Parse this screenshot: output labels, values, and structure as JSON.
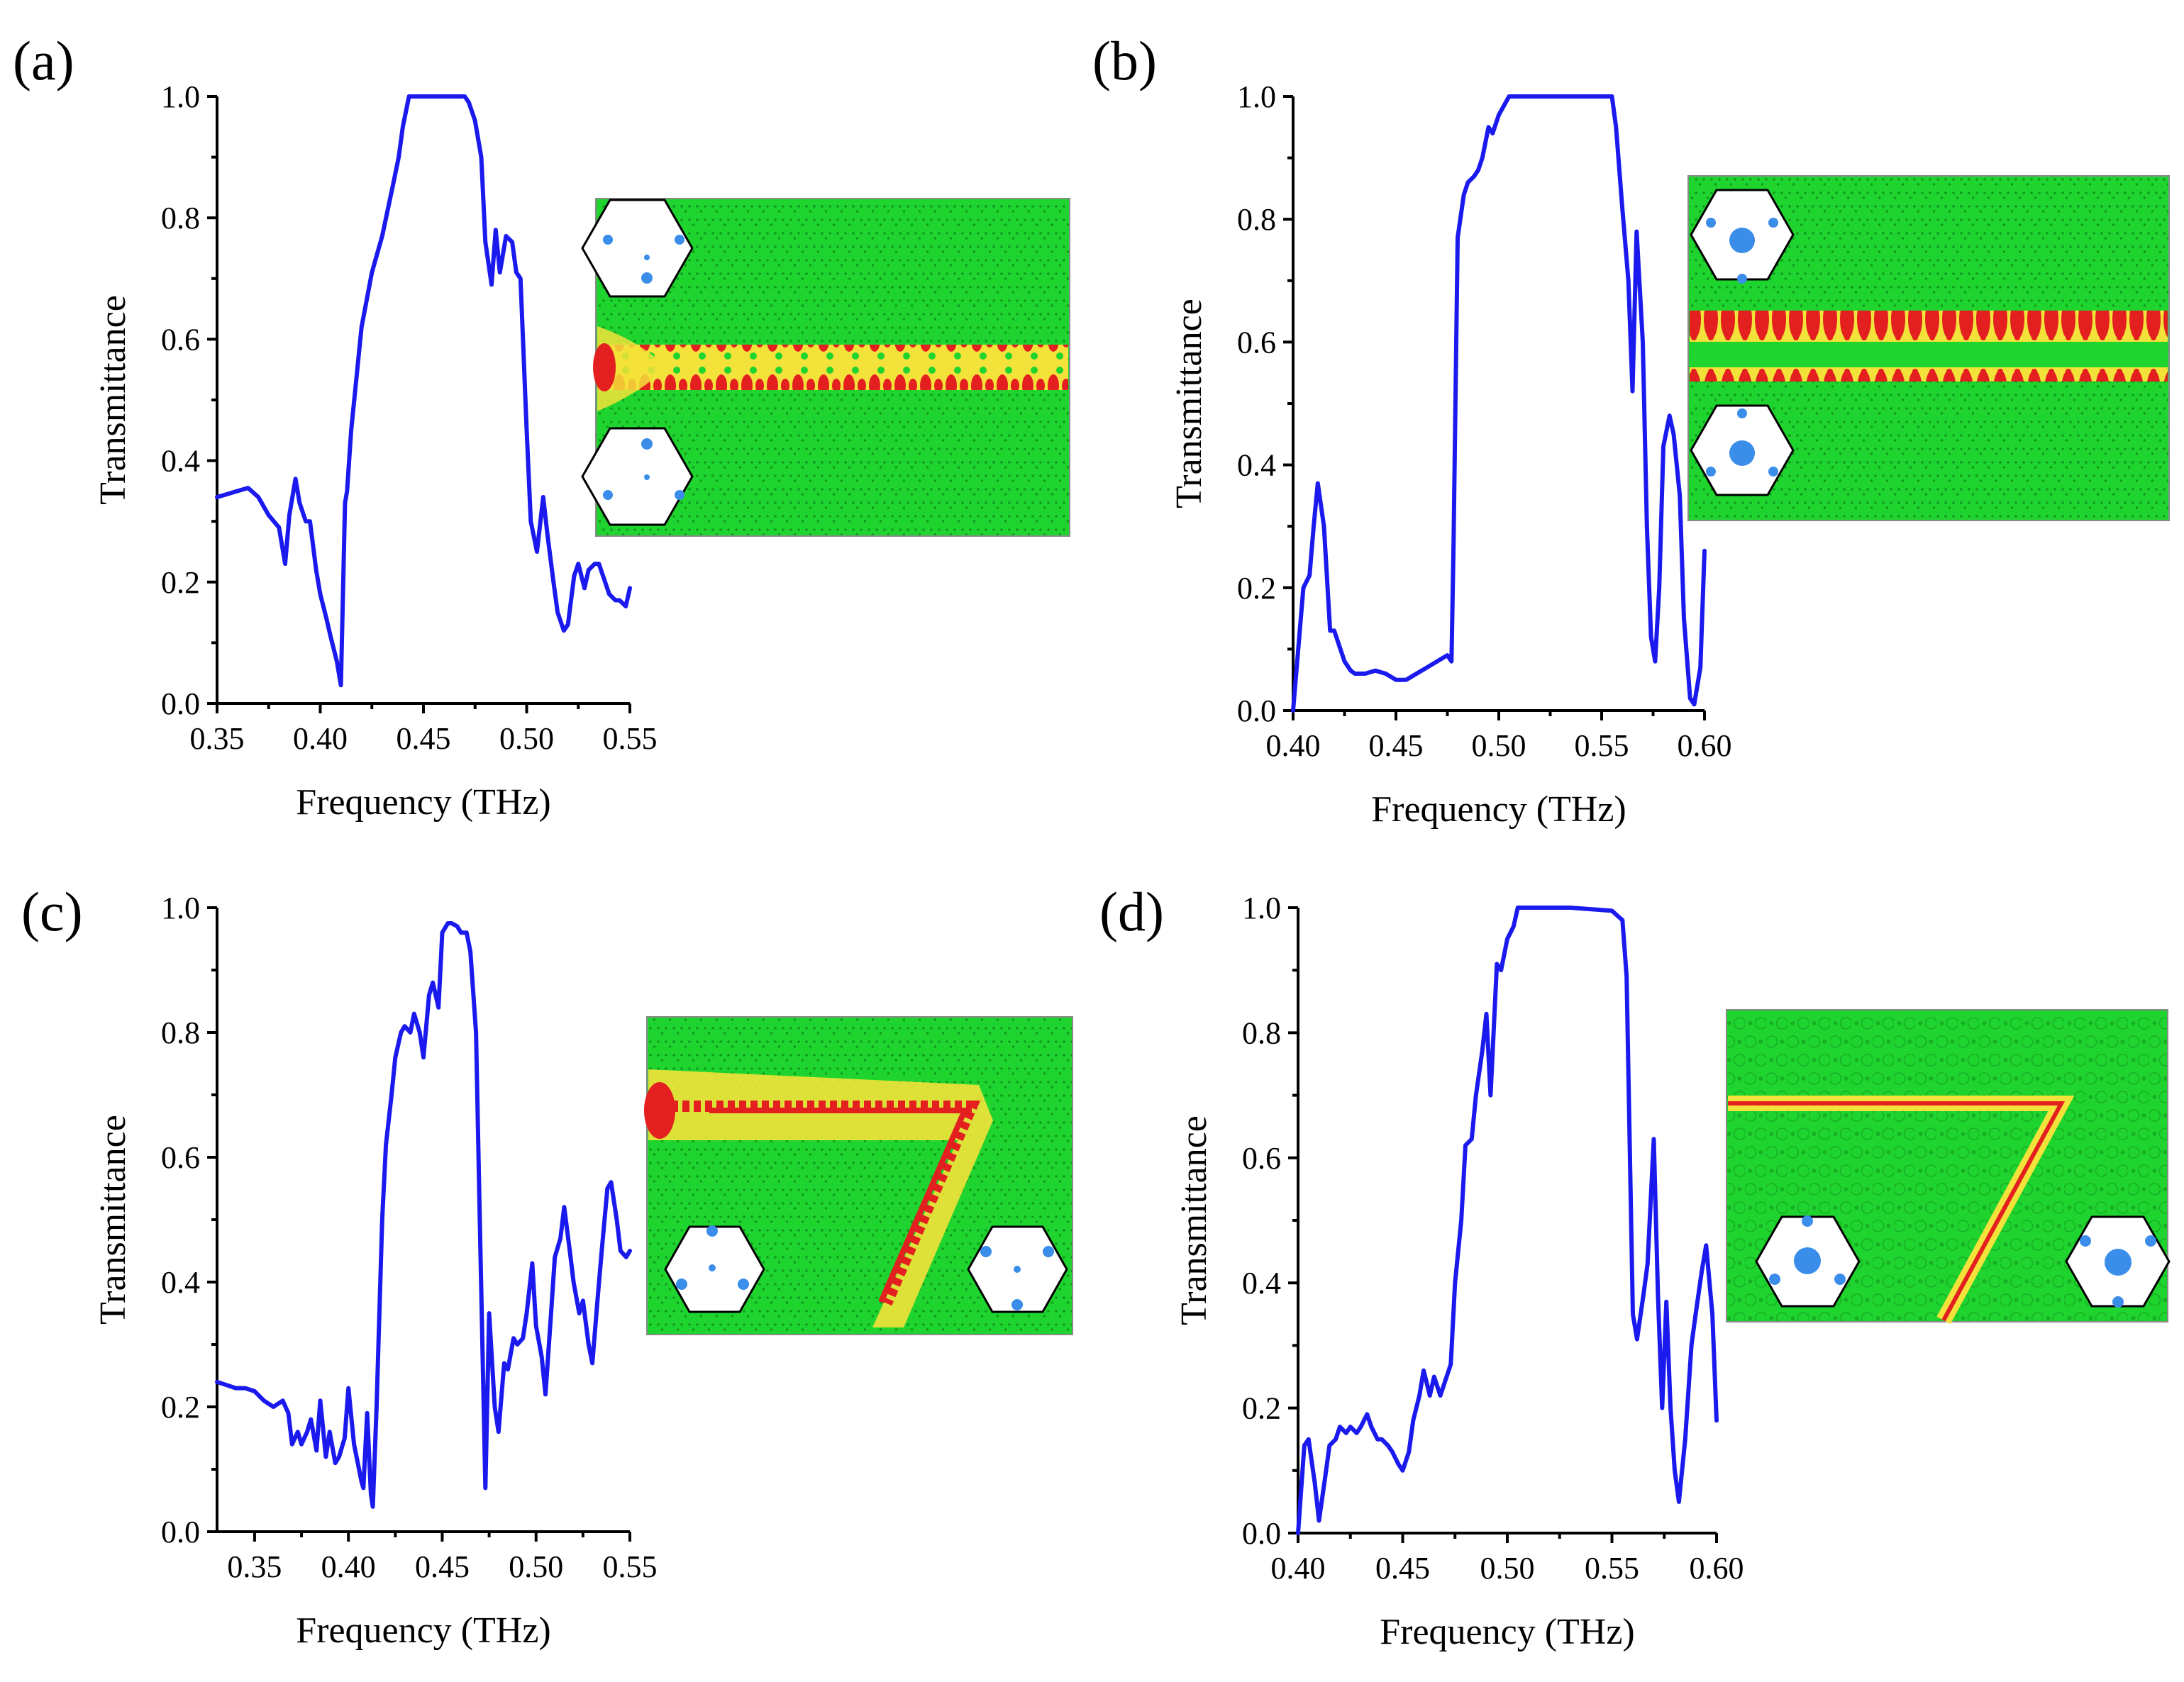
{
  "colors": {
    "line": "#1a1aee",
    "field_bg": "#1fd42e",
    "field_hot": "#e3201f",
    "field_warm": "#f3e23a",
    "cell_dot": "#3a8de8"
  },
  "chart_data": [
    {
      "panel": "(a)",
      "type": "line",
      "title": "",
      "xlabel": "Frequency (THz)",
      "ylabel": "Transmittance",
      "xlim": [
        0.35,
        0.55
      ],
      "ylim": [
        0.0,
        1.0
      ],
      "xticks": [
        "0.35",
        "0.40",
        "0.45",
        "0.50",
        "0.55"
      ],
      "yticks": [
        "0.0",
        "0.2",
        "0.4",
        "0.6",
        "0.8",
        "1.0"
      ],
      "inset": {
        "type": "straight-waveguide-field-map",
        "unit_cells": "small-dot"
      },
      "series": [
        {
          "name": "Transmittance",
          "x": [
            0.35,
            0.355,
            0.36,
            0.365,
            0.37,
            0.375,
            0.38,
            0.383,
            0.385,
            0.388,
            0.39,
            0.393,
            0.395,
            0.398,
            0.4,
            0.403,
            0.405,
            0.408,
            0.41,
            0.412,
            0.413,
            0.415,
            0.42,
            0.425,
            0.43,
            0.435,
            0.438,
            0.44,
            0.443,
            0.445,
            0.45,
            0.46,
            0.47,
            0.472,
            0.475,
            0.478,
            0.48,
            0.483,
            0.485,
            0.487,
            0.49,
            0.493,
            0.495,
            0.497,
            0.5,
            0.502,
            0.505,
            0.508,
            0.51,
            0.513,
            0.515,
            0.518,
            0.52,
            0.523,
            0.525,
            0.528,
            0.53,
            0.533,
            0.535,
            0.538,
            0.54,
            0.543,
            0.545,
            0.548,
            0.55
          ],
          "y": [
            0.34,
            0.345,
            0.35,
            0.355,
            0.34,
            0.31,
            0.29,
            0.23,
            0.31,
            0.37,
            0.33,
            0.3,
            0.3,
            0.22,
            0.18,
            0.14,
            0.11,
            0.07,
            0.03,
            0.33,
            0.35,
            0.45,
            0.62,
            0.71,
            0.77,
            0.85,
            0.9,
            0.95,
            1.0,
            1.0,
            1.0,
            1.0,
            1.0,
            0.99,
            0.96,
            0.9,
            0.76,
            0.69,
            0.78,
            0.71,
            0.77,
            0.76,
            0.71,
            0.7,
            0.45,
            0.3,
            0.25,
            0.34,
            0.28,
            0.2,
            0.15,
            0.12,
            0.13,
            0.21,
            0.23,
            0.19,
            0.22,
            0.23,
            0.23,
            0.2,
            0.18,
            0.17,
            0.17,
            0.16,
            0.19
          ]
        }
      ]
    },
    {
      "panel": "(b)",
      "type": "line",
      "title": "",
      "xlabel": "Frequency (THz)",
      "ylabel": "Transmittance",
      "xlim": [
        0.4,
        0.6
      ],
      "ylim": [
        0.0,
        1.0
      ],
      "xticks": [
        "0.40",
        "0.45",
        "0.50",
        "0.55",
        "0.60"
      ],
      "yticks": [
        "0.0",
        "0.2",
        "0.4",
        "0.6",
        "0.8",
        "1.0"
      ],
      "inset": {
        "type": "straight-waveguide-field-map",
        "unit_cells": "large-center"
      },
      "series": [
        {
          "name": "Transmittance",
          "x": [
            0.4,
            0.402,
            0.405,
            0.408,
            0.41,
            0.412,
            0.415,
            0.418,
            0.42,
            0.423,
            0.425,
            0.428,
            0.43,
            0.435,
            0.44,
            0.445,
            0.45,
            0.455,
            0.46,
            0.465,
            0.47,
            0.475,
            0.477,
            0.478,
            0.48,
            0.483,
            0.485,
            0.488,
            0.49,
            0.492,
            0.495,
            0.497,
            0.5,
            0.505,
            0.51,
            0.53,
            0.55,
            0.555,
            0.557,
            0.56,
            0.563,
            0.565,
            0.567,
            0.57,
            0.572,
            0.574,
            0.576,
            0.578,
            0.58,
            0.583,
            0.585,
            0.588,
            0.59,
            0.593,
            0.595,
            0.598,
            0.6
          ],
          "y": [
            0.0,
            0.08,
            0.2,
            0.22,
            0.3,
            0.37,
            0.3,
            0.13,
            0.13,
            0.1,
            0.08,
            0.065,
            0.06,
            0.06,
            0.065,
            0.06,
            0.05,
            0.05,
            0.06,
            0.07,
            0.08,
            0.09,
            0.08,
            0.27,
            0.77,
            0.84,
            0.86,
            0.87,
            0.88,
            0.9,
            0.95,
            0.94,
            0.97,
            1.0,
            1.0,
            1.0,
            1.0,
            1.0,
            0.95,
            0.82,
            0.7,
            0.52,
            0.78,
            0.6,
            0.3,
            0.12,
            0.08,
            0.2,
            0.43,
            0.48,
            0.45,
            0.35,
            0.15,
            0.02,
            0.01,
            0.07,
            0.26
          ]
        }
      ]
    },
    {
      "panel": "(c)",
      "type": "line",
      "title": "",
      "xlabel": "Frequency (THz)",
      "ylabel": "Transmittance",
      "xlim": [
        0.33,
        0.55
      ],
      "ylim": [
        0.0,
        1.0
      ],
      "xticks": [
        "0.35",
        "0.40",
        "0.45",
        "0.50",
        "0.55"
      ],
      "yticks": [
        "0.0",
        "0.2",
        "0.4",
        "0.6",
        "0.8",
        "1.0"
      ],
      "inset": {
        "type": "bent-waveguide-field-map",
        "unit_cells": "small-dot"
      },
      "series": [
        {
          "name": "Transmittance",
          "x": [
            0.33,
            0.335,
            0.34,
            0.345,
            0.35,
            0.355,
            0.36,
            0.365,
            0.368,
            0.37,
            0.373,
            0.375,
            0.378,
            0.38,
            0.383,
            0.385,
            0.388,
            0.39,
            0.393,
            0.395,
            0.398,
            0.4,
            0.403,
            0.405,
            0.407,
            0.408,
            0.41,
            0.412,
            0.413,
            0.415,
            0.418,
            0.42,
            0.423,
            0.425,
            0.428,
            0.43,
            0.433,
            0.435,
            0.438,
            0.44,
            0.443,
            0.445,
            0.448,
            0.45,
            0.453,
            0.455,
            0.458,
            0.46,
            0.463,
            0.465,
            0.468,
            0.47,
            0.473,
            0.475,
            0.478,
            0.48,
            0.483,
            0.485,
            0.488,
            0.49,
            0.493,
            0.495,
            0.498,
            0.5,
            0.503,
            0.505,
            0.508,
            0.51,
            0.513,
            0.515,
            0.518,
            0.52,
            0.523,
            0.525,
            0.528,
            0.53,
            0.533,
            0.535,
            0.538,
            0.54,
            0.543,
            0.545,
            0.548,
            0.55
          ],
          "y": [
            0.24,
            0.235,
            0.23,
            0.23,
            0.225,
            0.21,
            0.2,
            0.21,
            0.19,
            0.14,
            0.16,
            0.14,
            0.16,
            0.18,
            0.13,
            0.21,
            0.12,
            0.16,
            0.11,
            0.12,
            0.15,
            0.23,
            0.14,
            0.11,
            0.08,
            0.07,
            0.19,
            0.06,
            0.04,
            0.2,
            0.5,
            0.62,
            0.7,
            0.76,
            0.8,
            0.81,
            0.8,
            0.83,
            0.8,
            0.76,
            0.86,
            0.88,
            0.84,
            0.96,
            0.975,
            0.975,
            0.97,
            0.96,
            0.96,
            0.93,
            0.8,
            0.5,
            0.07,
            0.35,
            0.2,
            0.16,
            0.27,
            0.26,
            0.31,
            0.3,
            0.31,
            0.35,
            0.43,
            0.33,
            0.28,
            0.22,
            0.35,
            0.44,
            0.47,
            0.52,
            0.45,
            0.4,
            0.35,
            0.37,
            0.3,
            0.27,
            0.38,
            0.45,
            0.55,
            0.56,
            0.5,
            0.45,
            0.44,
            0.45
          ]
        }
      ]
    },
    {
      "panel": "(d)",
      "type": "line",
      "title": "",
      "xlabel": "Frequency (THz)",
      "ylabel": "Transmittance",
      "xlim": [
        0.4,
        0.6
      ],
      "ylim": [
        0.0,
        1.0
      ],
      "xticks": [
        "0.40",
        "0.45",
        "0.50",
        "0.55",
        "0.60"
      ],
      "yticks": [
        "0.0",
        "0.2",
        "0.4",
        "0.6",
        "0.8",
        "1.0"
      ],
      "inset": {
        "type": "bent-waveguide-field-map",
        "unit_cells": "large-center"
      },
      "series": [
        {
          "name": "Transmittance",
          "x": [
            0.4,
            0.403,
            0.405,
            0.408,
            0.41,
            0.413,
            0.415,
            0.418,
            0.42,
            0.423,
            0.425,
            0.428,
            0.43,
            0.433,
            0.435,
            0.438,
            0.44,
            0.443,
            0.445,
            0.448,
            0.45,
            0.453,
            0.455,
            0.458,
            0.46,
            0.463,
            0.465,
            0.468,
            0.47,
            0.473,
            0.475,
            0.478,
            0.48,
            0.483,
            0.485,
            0.488,
            0.49,
            0.492,
            0.495,
            0.497,
            0.5,
            0.503,
            0.505,
            0.51,
            0.53,
            0.55,
            0.555,
            0.557,
            0.56,
            0.562,
            0.565,
            0.567,
            0.57,
            0.572,
            0.574,
            0.576,
            0.578,
            0.58,
            0.582,
            0.585,
            0.588,
            0.59,
            0.593,
            0.595,
            0.598,
            0.6
          ],
          "y": [
            0.0,
            0.14,
            0.15,
            0.08,
            0.02,
            0.09,
            0.14,
            0.15,
            0.17,
            0.16,
            0.17,
            0.16,
            0.17,
            0.19,
            0.17,
            0.15,
            0.15,
            0.14,
            0.13,
            0.11,
            0.1,
            0.13,
            0.18,
            0.22,
            0.26,
            0.22,
            0.25,
            0.22,
            0.24,
            0.27,
            0.4,
            0.5,
            0.62,
            0.63,
            0.7,
            0.77,
            0.83,
            0.7,
            0.91,
            0.9,
            0.95,
            0.97,
            1.0,
            1.0,
            1.0,
            0.995,
            0.98,
            0.89,
            0.35,
            0.31,
            0.38,
            0.43,
            0.63,
            0.38,
            0.2,
            0.37,
            0.2,
            0.1,
            0.05,
            0.15,
            0.3,
            0.35,
            0.42,
            0.46,
            0.35,
            0.18
          ]
        }
      ]
    }
  ]
}
